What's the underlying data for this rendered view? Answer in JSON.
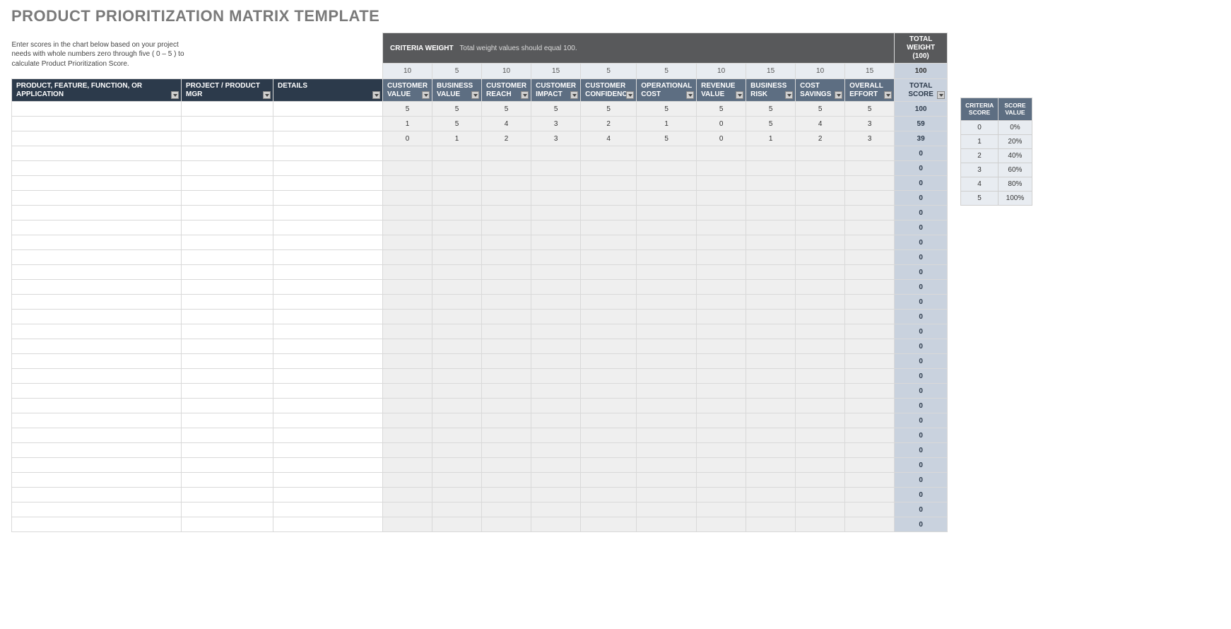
{
  "title": "PRODUCT PRIORITIZATION MATRIX TEMPLATE",
  "instructions": "Enter scores in the chart below based on your project needs with whole numbers zero through five ( 0 – 5 ) to calculate Product Prioritization Score.",
  "banner": {
    "label": "CRITERIA WEIGHT",
    "sub": "Total weight values should equal 100.",
    "total_label_line1": "TOTAL WEIGHT",
    "total_label_line2": "(100)"
  },
  "weights": [
    "10",
    "5",
    "10",
    "15",
    "5",
    "5",
    "10",
    "15",
    "10",
    "15"
  ],
  "weights_total": "100",
  "headers": {
    "product": "PRODUCT, FEATURE, FUNCTION, OR APPLICATION",
    "mgr": "PROJECT / PRODUCT MGR",
    "details": "DETAILS",
    "criteria": [
      "CUSTOMER VALUE",
      "BUSINESS VALUE",
      "CUSTOMER REACH",
      "CUSTOMER IMPACT",
      "CUSTOMER CONFIDENCE",
      "OPERATIONAL COST",
      "REVENUE VALUE",
      "BUSINESS RISK",
      "COST SAVINGS",
      "OVERALL EFFORT"
    ],
    "total": "TOTAL SCORE"
  },
  "rows": [
    {
      "product": "",
      "mgr": "",
      "details": "",
      "scores": [
        "5",
        "5",
        "5",
        "5",
        "5",
        "5",
        "5",
        "5",
        "5",
        "5"
      ],
      "total": "100"
    },
    {
      "product": "",
      "mgr": "",
      "details": "",
      "scores": [
        "1",
        "5",
        "4",
        "3",
        "2",
        "1",
        "0",
        "5",
        "4",
        "3"
      ],
      "total": "59"
    },
    {
      "product": "",
      "mgr": "",
      "details": "",
      "scores": [
        "0",
        "1",
        "2",
        "3",
        "4",
        "5",
        "0",
        "1",
        "2",
        "3"
      ],
      "total": "39"
    },
    {
      "product": "",
      "mgr": "",
      "details": "",
      "scores": [
        "",
        "",
        "",
        "",
        "",
        "",
        "",
        "",
        "",
        ""
      ],
      "total": "0"
    },
    {
      "product": "",
      "mgr": "",
      "details": "",
      "scores": [
        "",
        "",
        "",
        "",
        "",
        "",
        "",
        "",
        "",
        ""
      ],
      "total": "0"
    },
    {
      "product": "",
      "mgr": "",
      "details": "",
      "scores": [
        "",
        "",
        "",
        "",
        "",
        "",
        "",
        "",
        "",
        ""
      ],
      "total": "0"
    },
    {
      "product": "",
      "mgr": "",
      "details": "",
      "scores": [
        "",
        "",
        "",
        "",
        "",
        "",
        "",
        "",
        "",
        ""
      ],
      "total": "0"
    },
    {
      "product": "",
      "mgr": "",
      "details": "",
      "scores": [
        "",
        "",
        "",
        "",
        "",
        "",
        "",
        "",
        "",
        ""
      ],
      "total": "0"
    },
    {
      "product": "",
      "mgr": "",
      "details": "",
      "scores": [
        "",
        "",
        "",
        "",
        "",
        "",
        "",
        "",
        "",
        ""
      ],
      "total": "0"
    },
    {
      "product": "",
      "mgr": "",
      "details": "",
      "scores": [
        "",
        "",
        "",
        "",
        "",
        "",
        "",
        "",
        "",
        ""
      ],
      "total": "0"
    },
    {
      "product": "",
      "mgr": "",
      "details": "",
      "scores": [
        "",
        "",
        "",
        "",
        "",
        "",
        "",
        "",
        "",
        ""
      ],
      "total": "0"
    },
    {
      "product": "",
      "mgr": "",
      "details": "",
      "scores": [
        "",
        "",
        "",
        "",
        "",
        "",
        "",
        "",
        "",
        ""
      ],
      "total": "0"
    },
    {
      "product": "",
      "mgr": "",
      "details": "",
      "scores": [
        "",
        "",
        "",
        "",
        "",
        "",
        "",
        "",
        "",
        ""
      ],
      "total": "0"
    },
    {
      "product": "",
      "mgr": "",
      "details": "",
      "scores": [
        "",
        "",
        "",
        "",
        "",
        "",
        "",
        "",
        "",
        ""
      ],
      "total": "0"
    },
    {
      "product": "",
      "mgr": "",
      "details": "",
      "scores": [
        "",
        "",
        "",
        "",
        "",
        "",
        "",
        "",
        "",
        ""
      ],
      "total": "0"
    },
    {
      "product": "",
      "mgr": "",
      "details": "",
      "scores": [
        "",
        "",
        "",
        "",
        "",
        "",
        "",
        "",
        "",
        ""
      ],
      "total": "0"
    },
    {
      "product": "",
      "mgr": "",
      "details": "",
      "scores": [
        "",
        "",
        "",
        "",
        "",
        "",
        "",
        "",
        "",
        ""
      ],
      "total": "0"
    },
    {
      "product": "",
      "mgr": "",
      "details": "",
      "scores": [
        "",
        "",
        "",
        "",
        "",
        "",
        "",
        "",
        "",
        ""
      ],
      "total": "0"
    },
    {
      "product": "",
      "mgr": "",
      "details": "",
      "scores": [
        "",
        "",
        "",
        "",
        "",
        "",
        "",
        "",
        "",
        ""
      ],
      "total": "0"
    },
    {
      "product": "",
      "mgr": "",
      "details": "",
      "scores": [
        "",
        "",
        "",
        "",
        "",
        "",
        "",
        "",
        "",
        ""
      ],
      "total": "0"
    },
    {
      "product": "",
      "mgr": "",
      "details": "",
      "scores": [
        "",
        "",
        "",
        "",
        "",
        "",
        "",
        "",
        "",
        ""
      ],
      "total": "0"
    },
    {
      "product": "",
      "mgr": "",
      "details": "",
      "scores": [
        "",
        "",
        "",
        "",
        "",
        "",
        "",
        "",
        "",
        ""
      ],
      "total": "0"
    },
    {
      "product": "",
      "mgr": "",
      "details": "",
      "scores": [
        "",
        "",
        "",
        "",
        "",
        "",
        "",
        "",
        "",
        ""
      ],
      "total": "0"
    },
    {
      "product": "",
      "mgr": "",
      "details": "",
      "scores": [
        "",
        "",
        "",
        "",
        "",
        "",
        "",
        "",
        "",
        ""
      ],
      "total": "0"
    },
    {
      "product": "",
      "mgr": "",
      "details": "",
      "scores": [
        "",
        "",
        "",
        "",
        "",
        "",
        "",
        "",
        "",
        ""
      ],
      "total": "0"
    },
    {
      "product": "",
      "mgr": "",
      "details": "",
      "scores": [
        "",
        "",
        "",
        "",
        "",
        "",
        "",
        "",
        "",
        ""
      ],
      "total": "0"
    },
    {
      "product": "",
      "mgr": "",
      "details": "",
      "scores": [
        "",
        "",
        "",
        "",
        "",
        "",
        "",
        "",
        "",
        ""
      ],
      "total": "0"
    },
    {
      "product": "",
      "mgr": "",
      "details": "",
      "scores": [
        "",
        "",
        "",
        "",
        "",
        "",
        "",
        "",
        "",
        ""
      ],
      "total": "0"
    },
    {
      "product": "",
      "mgr": "",
      "details": "",
      "scores": [
        "",
        "",
        "",
        "",
        "",
        "",
        "",
        "",
        "",
        ""
      ],
      "total": "0"
    }
  ],
  "legend": {
    "col1": "CRITERIA SCORE",
    "col2": "SCORE VALUE",
    "rows": [
      [
        "0",
        "0%"
      ],
      [
        "1",
        "20%"
      ],
      [
        "2",
        "40%"
      ],
      [
        "3",
        "60%"
      ],
      [
        "4",
        "80%"
      ],
      [
        "5",
        "100%"
      ]
    ]
  },
  "colors": {
    "title": "#7a7a7a",
    "banner_bg": "#58595b",
    "header_dark_bg": "#2c3a4b",
    "header_light_bg": "#5d6e82",
    "weight_bg": "#e8ecf1",
    "total_bg": "#c9d2de",
    "grey_cell_bg": "#efefef",
    "border": "#d9d9d9"
  }
}
